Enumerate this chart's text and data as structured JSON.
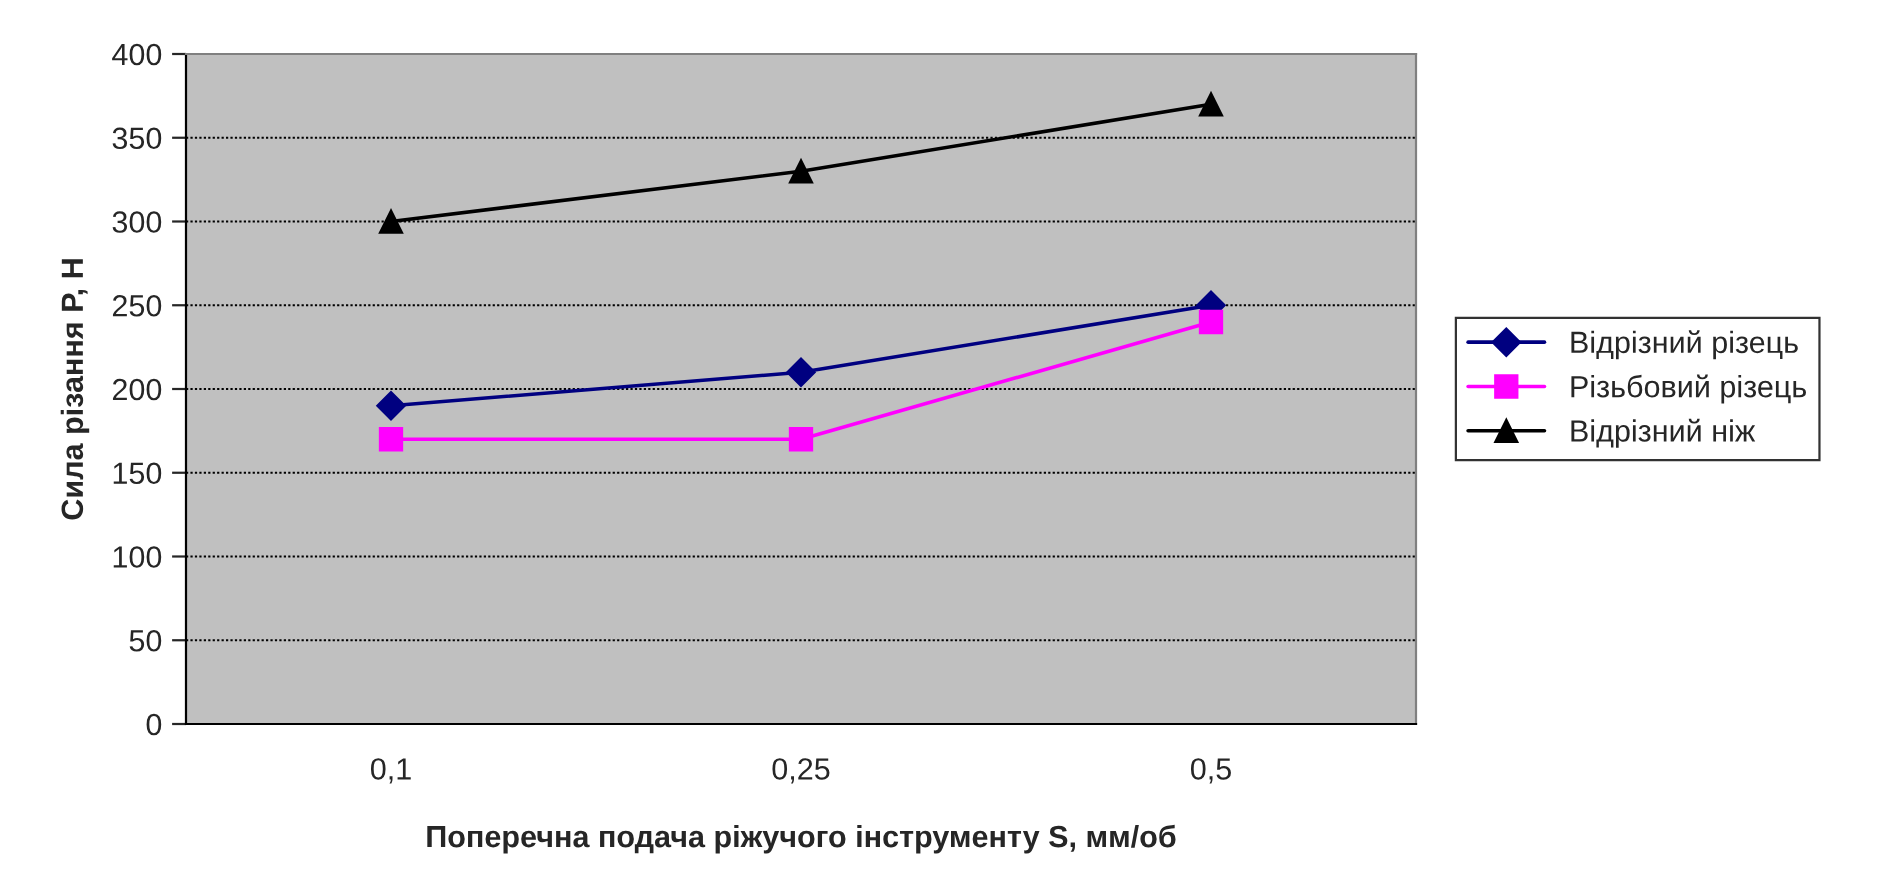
{
  "chart_data": {
    "type": "line",
    "xlabel": "Поперечна подача ріжучого інструменту S, мм/об",
    "ylabel": "Сила різання P, Н",
    "categories": [
      "0,1",
      "0,25",
      "0,5"
    ],
    "series": [
      {
        "name": "Відрізний різець",
        "color": "#000080",
        "values": [
          190,
          210,
          250
        ],
        "marker": "diamond"
      },
      {
        "name": "Різьбовий різець",
        "color": "#ff00ff",
        "values": [
          170,
          170,
          240
        ],
        "marker": "square"
      },
      {
        "name": "Відрізний ніж",
        "color": "#000000",
        "values": [
          300,
          330,
          370
        ],
        "marker": "triangle"
      }
    ],
    "ylim": [
      0,
      400
    ],
    "yticks": [
      0,
      50,
      100,
      150,
      200,
      250,
      300,
      350,
      400
    ],
    "grid": "y",
    "legend": "right",
    "line_style": "solid"
  }
}
